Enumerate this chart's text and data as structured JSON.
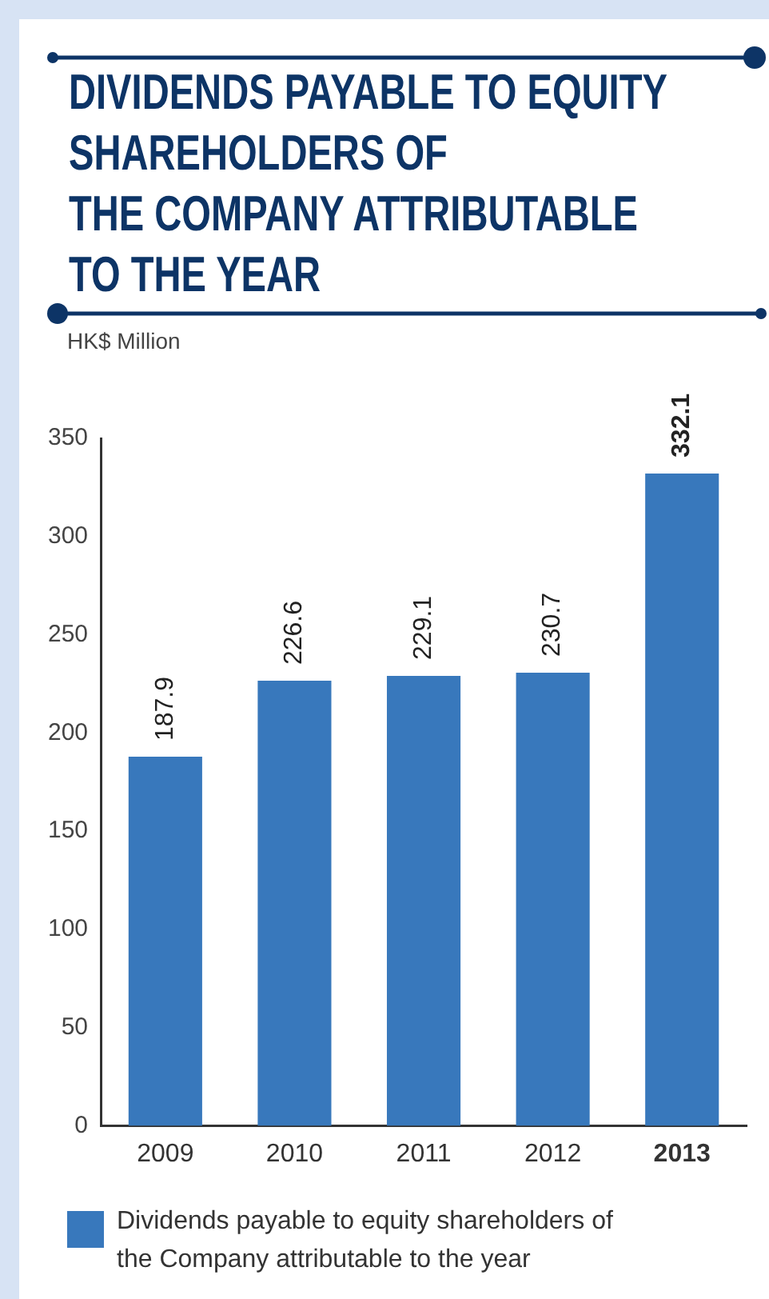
{
  "chart_data": {
    "type": "bar",
    "title": "DIVIDENDS PAYABLE TO EQUITY\nSHAREHOLDERS OF\nTHE COMPANY ATTRIBUTABLE\nTO THE YEAR",
    "ylabel": "HK$ Million",
    "categories": [
      "2009",
      "2010",
      "2011",
      "2012",
      "2013"
    ],
    "series": [
      {
        "name": "Dividends payable to equity shareholders of the Company attributable to the year",
        "color": "#3878bc",
        "values": [
          187.9,
          226.6,
          229.1,
          230.7,
          332.1
        ]
      }
    ],
    "ylim": [
      0,
      350
    ],
    "yticks": [
      0,
      50,
      100,
      150,
      200,
      250,
      300,
      350
    ],
    "grid": false,
    "legend": "bottom",
    "data_labels": true
  }
}
